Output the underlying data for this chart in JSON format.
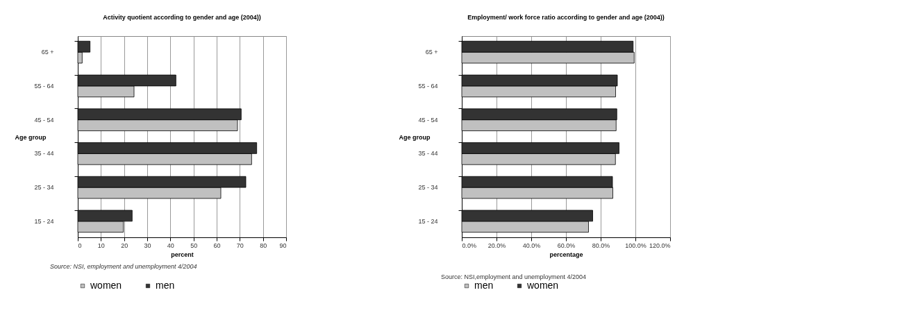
{
  "chart_data": [
    {
      "type": "bar",
      "orientation": "horizontal",
      "title": "Activity quotient according to gender and age (2004))",
      "xlabel": "percent",
      "ylabel": "Age group",
      "categories": [
        "65 +",
        "55 - 64",
        "45 - 54",
        "35 - 44",
        "25 - 34",
        "15 - 24"
      ],
      "series": [
        {
          "name": "women",
          "color": "#c0c0c0",
          "values": [
            1.9,
            24.3,
            69.0,
            75.1,
            61.8,
            19.7
          ]
        },
        {
          "name": "men",
          "color": "#333333",
          "values": [
            5.3,
            42.4,
            70.6,
            77.3,
            72.6,
            23.5
          ]
        }
      ],
      "xlim": [
        0,
        90
      ],
      "xticks": [
        0,
        10,
        20,
        30,
        40,
        50,
        60,
        70,
        80,
        90
      ],
      "grid": "x",
      "legend": "bottom",
      "annotations": [
        "Source: NSI, employment and unemployment 4/2004"
      ]
    },
    {
      "type": "bar",
      "orientation": "horizontal",
      "title": "Employment/ work force ratio according to gender and age (2004))",
      "xlabel": "percentage",
      "ylabel": "Age group",
      "categories": [
        "65 +",
        "55 - 64",
        "45 - 54",
        "35 - 44",
        "25 - 34",
        "15 - 24"
      ],
      "series": [
        {
          "name": "men",
          "color": "#c0c0c0",
          "values": [
            99.3,
            88.6,
            88.9,
            88.5,
            87.0,
            73.0
          ]
        },
        {
          "name": "women",
          "color": "#333333",
          "values": [
            98.7,
            89.6,
            89.3,
            90.6,
            86.8,
            75.4
          ]
        }
      ],
      "xlim": [
        0,
        120
      ],
      "xticks": [
        {
          "value": 0,
          "label": "0.0%"
        },
        {
          "value": 20,
          "label": "20.0%"
        },
        {
          "value": 40,
          "label": "40.0%"
        },
        {
          "value": 60,
          "label": "60.0%"
        },
        {
          "value": 80,
          "label": "80.0%"
        },
        {
          "value": 100,
          "label": "100.0%"
        },
        {
          "value": 120,
          "label": "120.0%"
        }
      ],
      "grid": "x",
      "legend": "bottom",
      "annotations": [
        "Source: NSI,employment and  unemployment 4/2004"
      ]
    }
  ]
}
